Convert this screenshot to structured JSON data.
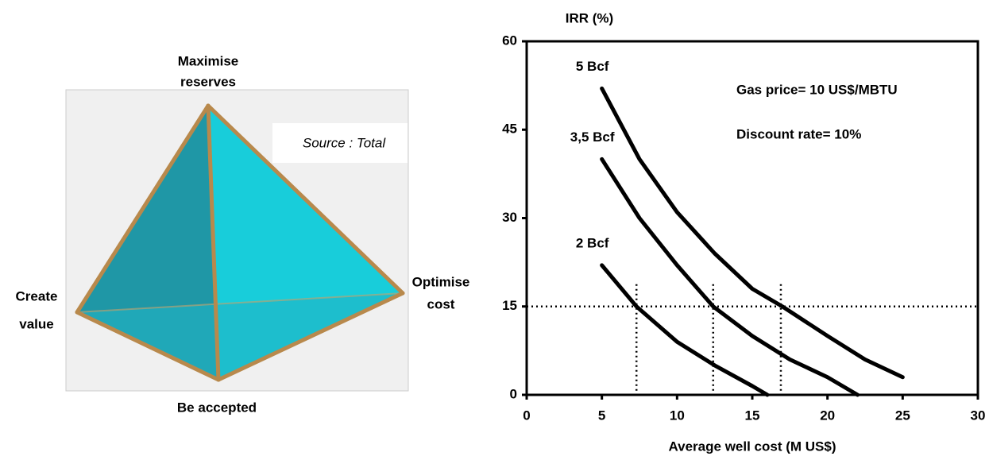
{
  "diagram": {
    "labels": {
      "top": [
        "Maximise",
        "reserves"
      ],
      "left": [
        "Create",
        "value"
      ],
      "right": [
        "Optimise",
        "cost"
      ],
      "bottom": [
        "Be accepted"
      ]
    },
    "source": "Source : Total"
  },
  "chart_data": {
    "type": "line",
    "y_label": "IRR (%)",
    "x_label": "Average well cost (M US$)",
    "annotations": [
      "Gas price= 10 US$/MBTU",
      "Discount rate= 10%"
    ],
    "xlim": [
      0,
      30
    ],
    "xticks": [
      0,
      5,
      10,
      15,
      20,
      25,
      30
    ],
    "ylim": [
      0,
      60
    ],
    "yticks": [
      0,
      15,
      30,
      45,
      60
    ],
    "hline": 15,
    "vlines": [
      7.3,
      12.4,
      16.9
    ],
    "series": [
      {
        "name": "5 Bcf",
        "color": "#000000",
        "x": [
          5,
          7.5,
          10,
          12.5,
          15,
          17,
          20,
          22.5,
          25
        ],
        "values": [
          52,
          40,
          31,
          24,
          18,
          15,
          10,
          6,
          3
        ]
      },
      {
        "name": "3,5 Bcf",
        "color": "#000000",
        "x": [
          5,
          7.5,
          10,
          12.4,
          15,
          17.5,
          20,
          22
        ],
        "values": [
          40,
          30,
          22,
          15,
          10,
          6,
          3,
          0
        ]
      },
      {
        "name": "2 Bcf",
        "color": "#000000",
        "x": [
          5,
          7.3,
          10,
          12.5,
          15,
          16
        ],
        "values": [
          22,
          15,
          9,
          5,
          1.5,
          0
        ]
      }
    ]
  }
}
